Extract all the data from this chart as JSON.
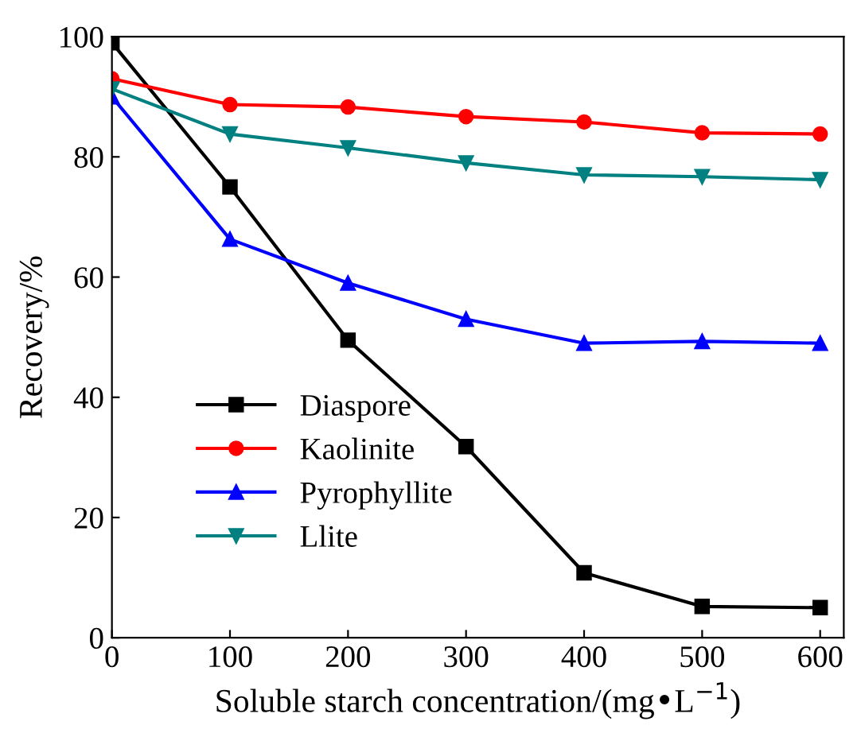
{
  "chart_data": {
    "type": "line",
    "xlabel": "Soluble starch concentration/(mg•L$^{−1}$)",
    "ylabel": "Recovery/%",
    "x": [
      0,
      100,
      200,
      300,
      400,
      500,
      600
    ],
    "series": [
      {
        "name": "Diaspore",
        "color": "#000000",
        "marker": "square",
        "values": [
          99,
          75,
          49.5,
          31.8,
          10.8,
          5.2,
          5.0
        ]
      },
      {
        "name": "Kaolinite",
        "color": "#ff0000",
        "marker": "circle",
        "values": [
          93,
          88.7,
          88.3,
          86.7,
          85.8,
          84,
          83.8
        ]
      },
      {
        "name": "Pyrophyllite",
        "color": "#0000ff",
        "marker": "triangle",
        "values": [
          90,
          66.3,
          59,
          53,
          49,
          49.3,
          49
        ]
      },
      {
        "name": "Llite",
        "color": "#008080",
        "marker": "triangle_down",
        "values": [
          91.3,
          83.8,
          81.5,
          79,
          77,
          76.7,
          76.2
        ]
      }
    ],
    "xlim": [
      0,
      620
    ],
    "ylim": [
      0,
      100
    ],
    "xticks": [
      0,
      100,
      200,
      300,
      400,
      500,
      600
    ],
    "yticks": [
      0,
      20,
      40,
      60,
      80,
      100
    ],
    "grid": false,
    "legend": "bottom left",
    "line_style": "solid"
  }
}
